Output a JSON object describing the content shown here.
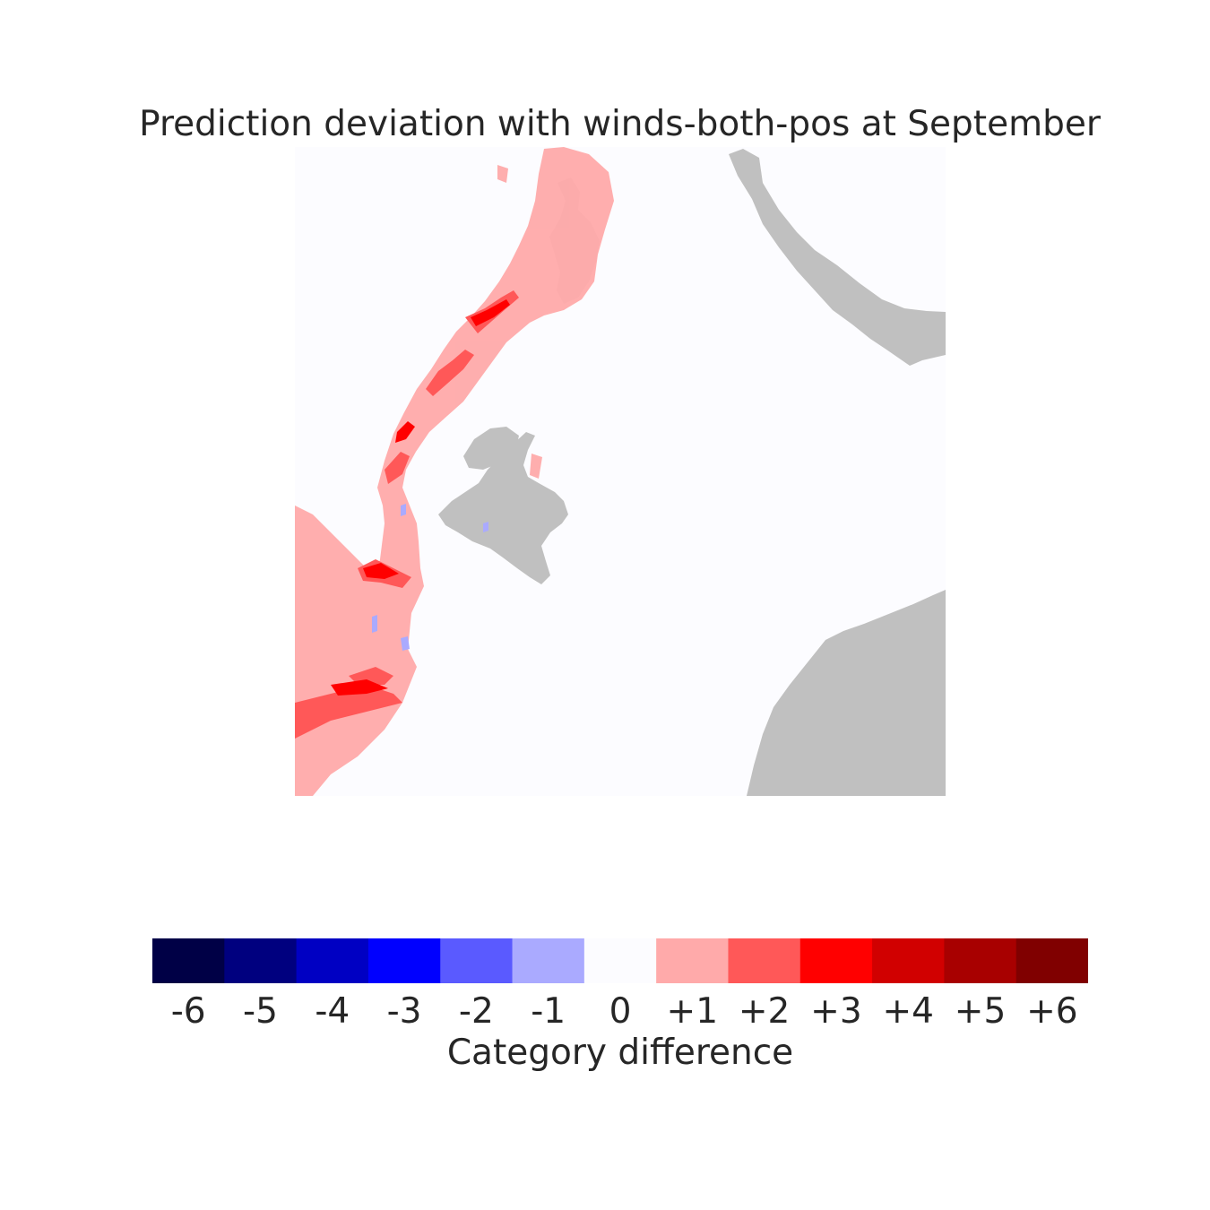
{
  "title": "Prediction deviation with winds-both-pos at September",
  "colorbar": {
    "label": "Category difference",
    "categories": [
      "-6",
      "-5",
      "-4",
      "-3",
      "-2",
      "-1",
      "0",
      "+1",
      "+2",
      "+3",
      "+4",
      "+5",
      "+6"
    ],
    "colors": [
      "#000046",
      "#00007f",
      "#0000c3",
      "#0000ff",
      "#5a5aff",
      "#aaaaff",
      "#fcfcff",
      "#ffaaaa",
      "#ff5858",
      "#ff0000",
      "#d10000",
      "#a80000",
      "#800000"
    ]
  },
  "map": {
    "background_color": "#fcfcff",
    "land_color": "#c0c0c0"
  }
}
